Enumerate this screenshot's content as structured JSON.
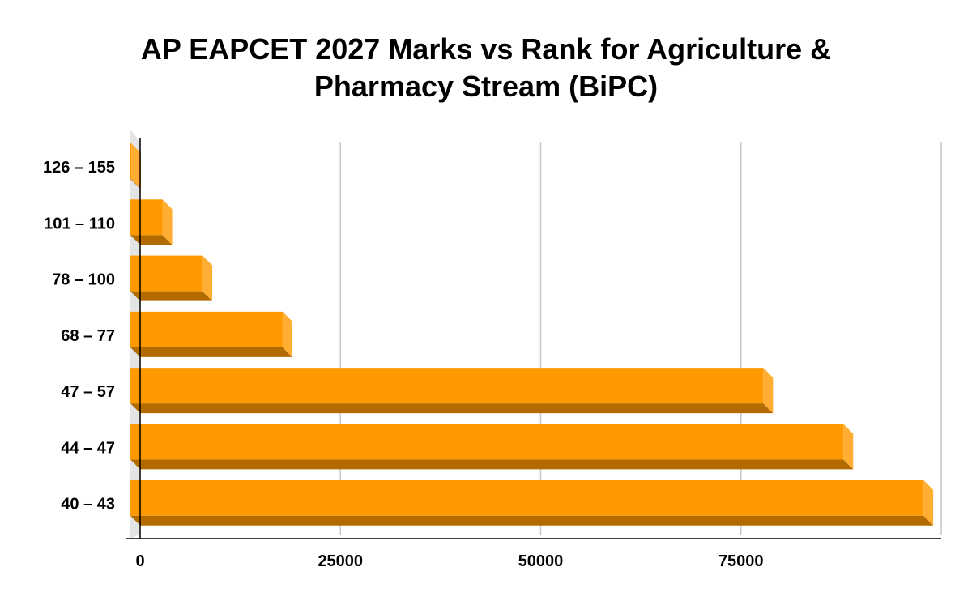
{
  "chart_data": {
    "type": "bar",
    "orientation": "horizontal",
    "title_line1": "AP EAPCET 2027 Marks vs Rank for Agriculture &",
    "title_line2": "Pharmacy Stream (BiPC)",
    "xlabel": "",
    "ylabel": "",
    "categories": [
      "126 – 155",
      "101 – 110",
      "78 – 100",
      "68 – 77",
      "47 – 57",
      "44 – 47",
      "40 – 43"
    ],
    "values": [
      1,
      4000,
      9000,
      19000,
      79000,
      89000,
      99000
    ],
    "xlim": [
      0,
      100000
    ],
    "x_ticks": [
      0,
      25000,
      50000,
      75000
    ],
    "x_tick_labels": [
      "0",
      "25000",
      "50000",
      "75000"
    ],
    "grid": true,
    "legend": "none",
    "style": "3d",
    "colors": {
      "bar_front": "#ff9900",
      "bar_bottom": "#b36b00",
      "bar_side": "#ffad33",
      "grid": "#c8c8c8",
      "axis": "#000000",
      "wall": "#e4e4e4"
    }
  }
}
